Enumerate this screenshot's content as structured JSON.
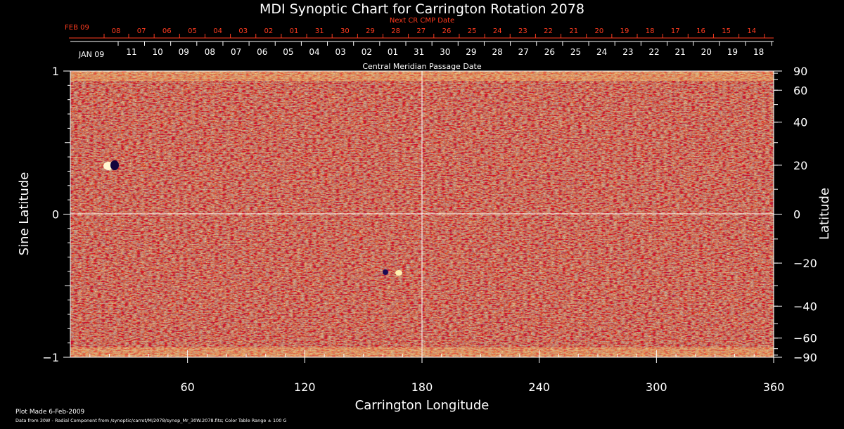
{
  "chart_data": {
    "type": "heatmap",
    "title": "MDI Synoptic Chart for Carrington Rotation 2078",
    "xlabel": "Carrington Longitude",
    "ylabel_left": "Sine Latitude",
    "ylabel_right": "Latitude",
    "xlim": [
      0,
      360
    ],
    "ylim": [
      -1,
      1
    ],
    "x_ticks": [
      "60",
      "120",
      "180",
      "240",
      "300",
      "360"
    ],
    "x_tick_values": [
      60,
      120,
      180,
      240,
      300,
      360
    ],
    "y_ticks_left": [
      "1",
      "0",
      "−1"
    ],
    "y_tick_values_left": [
      1,
      0,
      -1
    ],
    "y_ticks_right": [
      "90",
      "60",
      "40",
      "20",
      "0",
      "−20",
      "−40",
      "−60",
      "−90"
    ],
    "y_tick_degrees_right": [
      90,
      60,
      40,
      20,
      0,
      -20,
      -40,
      -60,
      -90
    ],
    "gridlines": {
      "longitude": 180,
      "sine_latitude": 0
    },
    "top_axis_next": {
      "label": "Next CR CMP Date",
      "start_label": "FEB 09",
      "dates": [
        "08",
        "07",
        "06",
        "05",
        "04",
        "03",
        "02",
        "01",
        "31",
        "30",
        "29",
        "28",
        "27",
        "26",
        "25",
        "24",
        "23",
        "22",
        "21",
        "20",
        "19",
        "18",
        "17",
        "16",
        "15",
        "14"
      ]
    },
    "top_axis_cmp": {
      "label": "Central Meridian Passage Date",
      "start_label": "JAN 09",
      "dates": [
        "11",
        "10",
        "09",
        "08",
        "07",
        "06",
        "05",
        "04",
        "03",
        "02",
        "01",
        "31",
        "30",
        "29",
        "28",
        "27",
        "26",
        "25",
        "24",
        "23",
        "22",
        "21",
        "20",
        "19",
        "18"
      ]
    },
    "color_range": "± 100 G",
    "colors": {
      "background_field": "#ff5a0a",
      "positive": "#fff2a0",
      "negative": "#1a0a55",
      "accent_text": "#ff3b1f"
    }
  },
  "footer": {
    "plot_made": "Plot Made  6-Feb-2009",
    "source": "Data from 30W - Radial Component from /synoptic/carrot/M/2078/synop_Mr_30W.2078.fits; Color Table Range ± 100 G"
  }
}
